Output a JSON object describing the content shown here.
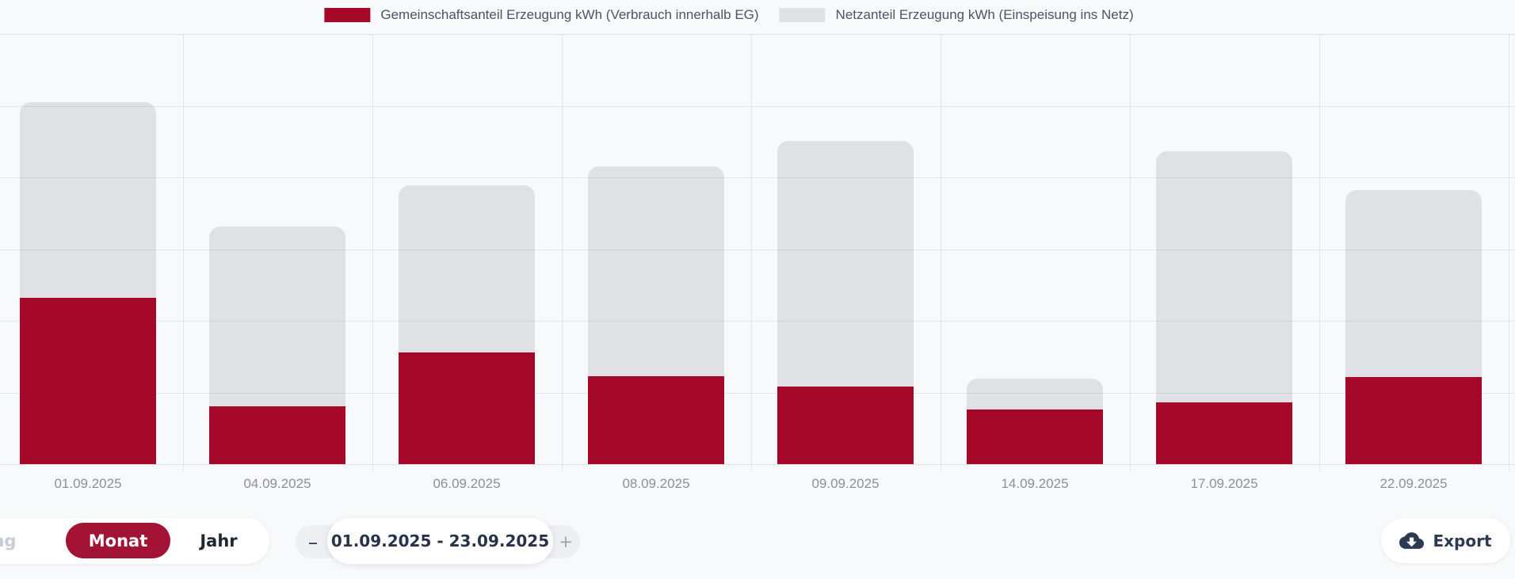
{
  "chart_data": {
    "type": "bar",
    "stacked": true,
    "categories": [
      "01.09.2025",
      "04.09.2025",
      "06.09.2025",
      "08.09.2025",
      "09.09.2025",
      "14.09.2025",
      "17.09.2025",
      "22.09.2025"
    ],
    "series": [
      {
        "name": "Gemeinschaftsanteil Erzeugung kWh (Verbrauch innerhalb EG)",
        "color": "#a50829",
        "values": [
          2.32,
          0.81,
          1.56,
          1.23,
          1.08,
          0.76,
          0.86,
          1.22
        ]
      },
      {
        "name": "Netzanteil Erzeugung kWh (Einspeisung ins Netz)",
        "color": "#e0e1e4",
        "values": [
          2.73,
          2.5,
          2.33,
          2.92,
          3.43,
          0.43,
          3.51,
          2.6
        ]
      }
    ],
    "title": "",
    "xlabel": "",
    "ylabel": "",
    "ylim": [
      0,
      6
    ],
    "units": "relative gridline intervals (no y-axis value labels visible in screenshot)",
    "grid": true,
    "legend_position": "top"
  },
  "controls": {
    "period_tabs": [
      {
        "label": "Tag",
        "selected": false
      },
      {
        "label": "Monat",
        "selected": true
      },
      {
        "label": "Jahr",
        "selected": false
      }
    ],
    "range_stepper": {
      "decrement_label": "–",
      "increment_label": "+",
      "value": "01.09.2025 - 23.09.2025"
    },
    "export_label": "Export"
  },
  "icons": {
    "export": "cloud-download-icon"
  },
  "colors": {
    "brand_red": "#a50829",
    "selected_pill_red": "#a31336",
    "bar_gray": "#e0e1e4",
    "page_background": "#f8f9fb",
    "text_dark": "#26334a",
    "text_muted": "#8a919d",
    "text_disabled": "#c7ccd6"
  }
}
